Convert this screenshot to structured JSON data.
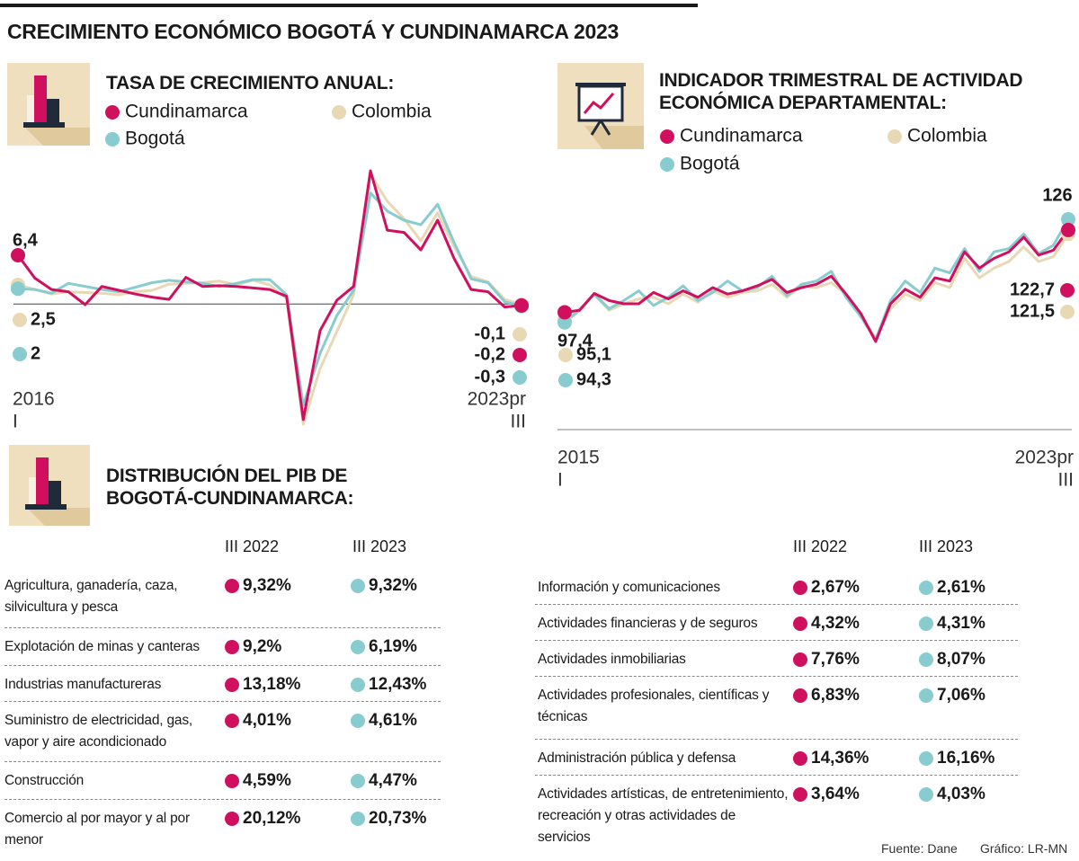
{
  "title": "CRECIMIENTO ECONÓMICO BOGOTÁ Y CUNDINAMARCA 2023",
  "chart_data": [
    {
      "type": "line",
      "title": "TASA DE CRECIMIENTO ANUAL:",
      "zero_line": true,
      "categories": [
        [
          "2016",
          "I"
        ],
        null,
        null,
        null,
        null,
        null,
        null,
        null,
        null,
        null,
        null,
        null,
        null,
        null,
        null,
        null,
        null,
        null,
        null,
        null,
        null,
        null,
        null,
        null,
        null,
        null,
        null,
        null,
        null,
        null,
        [
          "2023pr",
          "III"
        ]
      ],
      "series": [
        {
          "name": "Cundinamarca",
          "color": "#d0105f",
          "values": [
            6.4,
            3.4,
            1.9,
            1.6,
            -0.1,
            2.3,
            1.8,
            1.3,
            0.9,
            0.6,
            3.5,
            2.3,
            2.4,
            2.3,
            2.1,
            1.9,
            1.0,
            -15.2,
            -3.5,
            0.5,
            2.3,
            17.5,
            9.7,
            9.4,
            7.1,
            11.0,
            5.9,
            1.9,
            1.6,
            -0.4,
            -0.2
          ],
          "value_labels": [
            "6,4",
            null,
            null,
            null,
            null,
            null,
            null,
            null,
            null,
            null,
            null,
            null,
            null,
            null,
            null,
            null,
            null,
            null,
            null,
            null,
            null,
            null,
            null,
            null,
            null,
            null,
            null,
            null,
            null,
            null,
            "-0,2"
          ]
        },
        {
          "name": "Colombia",
          "color": "#e8d8b4",
          "values": [
            2.5,
            1.9,
            1.3,
            1.6,
            1.5,
            1.4,
            1.2,
            1.6,
            1.8,
            2.6,
            2.7,
            2.8,
            3.0,
            2.5,
            3.1,
            2.5,
            0.7,
            -15.8,
            -8.5,
            -3.6,
            1.2,
            17.0,
            13.5,
            11.2,
            8.3,
            12.0,
            7.5,
            3.6,
            2.9,
            0.6,
            -0.1
          ],
          "value_labels": [
            "2,5",
            null,
            null,
            null,
            null,
            null,
            null,
            null,
            null,
            null,
            null,
            null,
            null,
            null,
            null,
            null,
            null,
            null,
            null,
            null,
            null,
            null,
            null,
            null,
            null,
            null,
            null,
            null,
            null,
            null,
            "-0,1"
          ]
        },
        {
          "name": "Bogotá",
          "color": "#88ccd0",
          "values": [
            2.0,
            1.9,
            1.4,
            2.7,
            2.3,
            1.9,
            1.6,
            2.2,
            2.8,
            3.1,
            2.9,
            2.7,
            2.3,
            2.7,
            3.2,
            3.2,
            1.2,
            -13.3,
            -6.5,
            -1.5,
            1.8,
            14.6,
            12.2,
            11.0,
            10.4,
            13.1,
            8.0,
            3.3,
            2.8,
            0.3,
            -0.3
          ],
          "value_labels": [
            "2",
            null,
            null,
            null,
            null,
            null,
            null,
            null,
            null,
            null,
            null,
            null,
            null,
            null,
            null,
            null,
            null,
            null,
            null,
            null,
            null,
            null,
            null,
            null,
            null,
            null,
            null,
            null,
            null,
            null,
            "-0,3"
          ]
        }
      ]
    },
    {
      "type": "line",
      "title": "INDICADOR TRIMESTRAL DE ACTIVIDAD ECONÓMICA DEPARTAMENTAL:",
      "zero_line": false,
      "categories": [
        [
          "2015",
          "I"
        ],
        null,
        null,
        null,
        null,
        null,
        null,
        null,
        null,
        null,
        null,
        null,
        null,
        null,
        null,
        null,
        null,
        null,
        null,
        null,
        null,
        null,
        null,
        null,
        null,
        null,
        null,
        null,
        null,
        null,
        null,
        null,
        null,
        null,
        [
          "2023pr",
          "III"
        ]
      ],
      "series": [
        {
          "name": "Cundinamarca",
          "color": "#d0105f",
          "values": [
            97.4,
            98.0,
            103.2,
            101.0,
            100.0,
            100.0,
            103.5,
            101.5,
            104.0,
            102.0,
            105.0,
            103.0,
            104.0,
            105.5,
            107.5,
            103.5,
            105.0,
            106.0,
            108.5,
            103.0,
            97.0,
            88.4,
            100.0,
            104.5,
            102.0,
            108.0,
            107.0,
            116.0,
            111.0,
            114.0,
            116.0,
            120.5,
            115.0,
            116.5,
            122.7
          ],
          "value_labels": [
            "97,4",
            null,
            null,
            null,
            null,
            null,
            null,
            null,
            null,
            null,
            null,
            null,
            null,
            null,
            null,
            null,
            null,
            null,
            null,
            null,
            null,
            null,
            null,
            null,
            null,
            null,
            null,
            null,
            null,
            null,
            null,
            null,
            null,
            null,
            "122,7"
          ]
        },
        {
          "name": "Colombia",
          "color": "#e8d8b4",
          "values": [
            95.1,
            98.5,
            102.8,
            98.0,
            100.0,
            101.5,
            102.0,
            100.0,
            103.0,
            100.5,
            104.0,
            102.0,
            103.5,
            104.0,
            106.0,
            102.0,
            105.5,
            105.0,
            106.5,
            103.0,
            96.0,
            89.5,
            98.5,
            103.0,
            101.0,
            106.5,
            105.0,
            114.0,
            108.0,
            111.0,
            113.0,
            117.5,
            113.0,
            114.5,
            121.5
          ],
          "value_labels": [
            "95,1",
            null,
            null,
            null,
            null,
            null,
            null,
            null,
            null,
            null,
            null,
            null,
            null,
            null,
            null,
            null,
            null,
            null,
            null,
            null,
            null,
            null,
            null,
            null,
            null,
            null,
            null,
            null,
            null,
            null,
            null,
            null,
            null,
            null,
            "121,5"
          ]
        },
        {
          "name": "Bogotá",
          "color": "#88ccd0",
          "values": [
            94.3,
            98.0,
            103.0,
            98.5,
            101.0,
            104.0,
            99.5,
            102.0,
            105.5,
            101.0,
            103.5,
            107.0,
            104.0,
            105.0,
            108.5,
            102.5,
            106.0,
            107.0,
            110.0,
            102.0,
            96.0,
            89.0,
            101.0,
            107.0,
            103.5,
            111.0,
            109.5,
            117.0,
            110.0,
            116.0,
            117.0,
            121.5,
            115.5,
            118.0,
            126
          ],
          "value_labels": [
            "94,3",
            null,
            null,
            null,
            null,
            null,
            null,
            null,
            null,
            null,
            null,
            null,
            null,
            null,
            null,
            null,
            null,
            null,
            null,
            null,
            null,
            null,
            null,
            null,
            null,
            null,
            null,
            null,
            null,
            null,
            null,
            null,
            null,
            null,
            "126"
          ]
        }
      ]
    }
  ],
  "tables": {
    "title": "DISTRIBUCIÓN DEL PIB DE BOGOTÁ-CUNDINAMARCA:",
    "panels": [
      {
        "columns": [
          "III 2022",
          "III 2023"
        ],
        "rows": [
          [
            "Agricultura, ganadería, caza, silvicultura y pesca",
            "9,32%",
            "9,32%"
          ],
          [
            "Explotación de minas y canteras",
            "9,2%",
            "6,19%"
          ],
          [
            "Industrias manufactureras",
            "13,18%",
            "12,43%"
          ],
          [
            "Suministro de electricidad, gas, vapor y aire acondicionado",
            "4,01%",
            "4,61%"
          ],
          [
            "Construcción",
            "4,59%",
            "4,47%"
          ],
          [
            "Comercio al por mayor y al por menor",
            "20,12%",
            "20,73%"
          ]
        ]
      },
      {
        "columns": [
          "III 2022",
          "III 2023"
        ],
        "rows": [
          [
            "Información y comunicaciones",
            "2,67%",
            "2,61%"
          ],
          [
            "Actividades financieras y de seguros",
            "4,32%",
            "4,31%"
          ],
          [
            "Actividades inmobiliarias",
            "7,76%",
            "8,07%"
          ],
          [
            "Actividades profesionales, científicas y técnicas",
            "6,83%",
            "7,06%"
          ],
          [
            "Administración pública y defensa",
            "14,36%",
            "16,16%"
          ],
          [
            "Actividades artísticas, de entretenimiento, recreación y otras actividades de servicios",
            "3,64%",
            "4,03%"
          ]
        ]
      }
    ]
  },
  "footer": {
    "source": "Fuente: Dane",
    "credit": "Gráfico: LR-MN"
  }
}
